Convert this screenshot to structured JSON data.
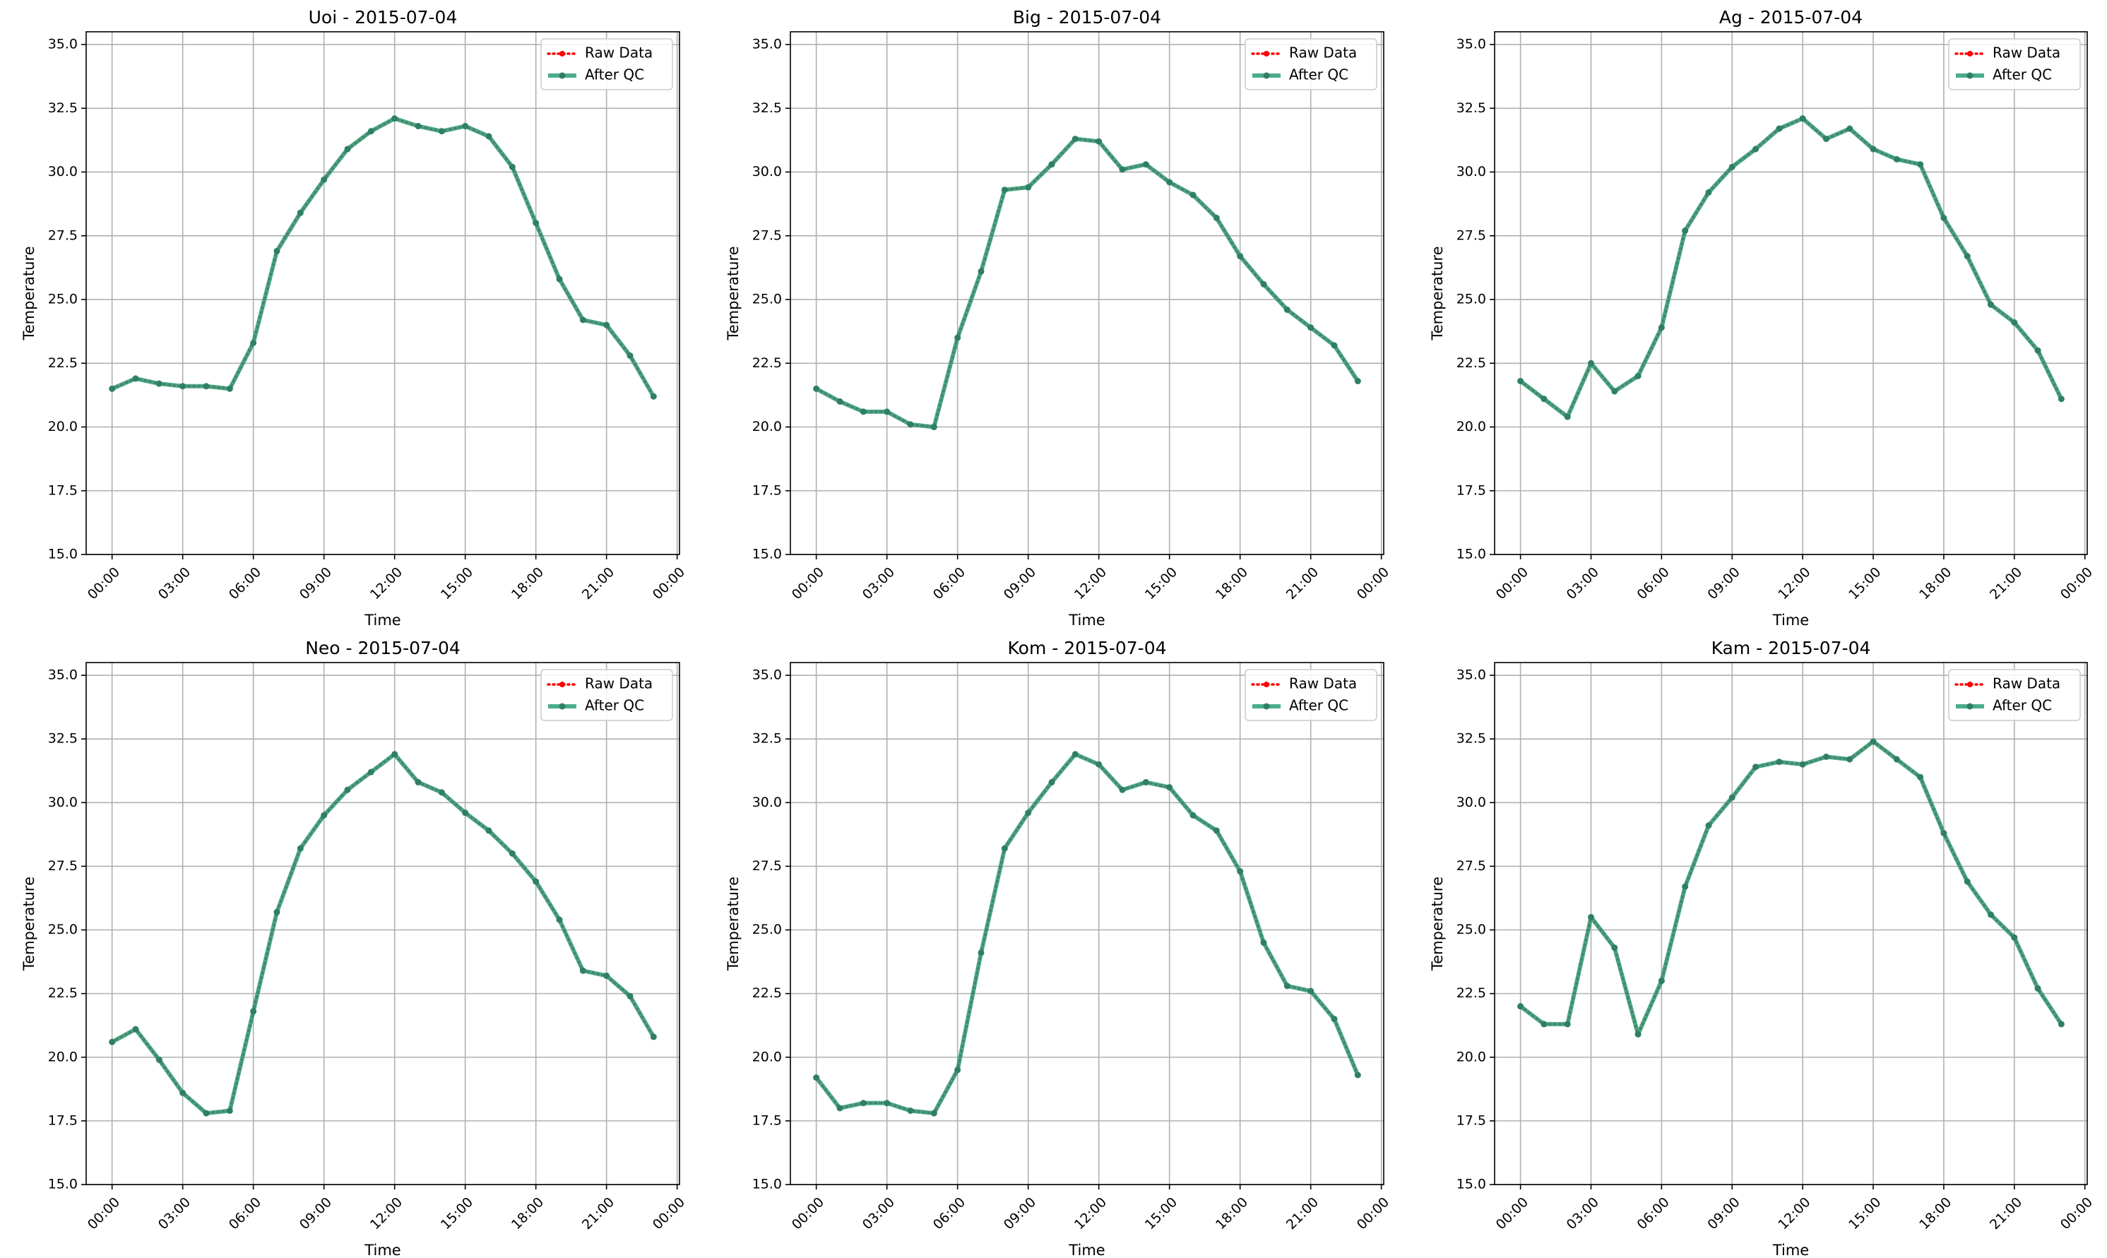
{
  "colors": {
    "raw": "#ff0000",
    "qc": "#2a9d78",
    "qc_marker": "#2f7f66",
    "grid": "#b0b0b0",
    "axis": "#000000"
  },
  "legend": {
    "raw_label": "Raw Data",
    "qc_label": "After QC",
    "placement": "top-right"
  },
  "chart_data": [
    {
      "type": "line",
      "title": "Uoi - 2015-07-04",
      "xlabel": "Time",
      "ylabel": "Temperature",
      "xlim": [
        -1.1,
        24.1
      ],
      "ylim": [
        15.0,
        35.5
      ],
      "xticks": [
        0,
        3,
        6,
        9,
        12,
        15,
        18,
        21,
        24
      ],
      "xtick_labels": [
        "00:00",
        "03:00",
        "06:00",
        "09:00",
        "12:00",
        "15:00",
        "18:00",
        "21:00",
        "00:00"
      ],
      "yticks": [
        15.0,
        17.5,
        20.0,
        22.5,
        25.0,
        27.5,
        30.0,
        32.5,
        35.0
      ],
      "ytick_labels": [
        "15.0",
        "17.5",
        "20.0",
        "22.5",
        "25.0",
        "27.5",
        "30.0",
        "32.5",
        "35.0"
      ],
      "grid": true,
      "series": [
        {
          "name": "Raw Data",
          "values": [
            21.5,
            21.9,
            21.7,
            21.6,
            21.6,
            21.5,
            23.3,
            26.9,
            28.4,
            29.7,
            30.9,
            31.6,
            32.1,
            31.8,
            31.6,
            31.8,
            31.4,
            30.2,
            28.0,
            25.8,
            24.2,
            24.0,
            22.8,
            21.2
          ]
        },
        {
          "name": "After QC",
          "values": [
            21.5,
            21.9,
            21.7,
            21.6,
            21.6,
            21.5,
            23.3,
            26.9,
            28.4,
            29.7,
            30.9,
            31.6,
            32.1,
            31.8,
            31.6,
            31.8,
            31.4,
            30.2,
            28.0,
            25.8,
            24.2,
            24.0,
            22.8,
            21.2
          ]
        }
      ]
    },
    {
      "type": "line",
      "title": "Big - 2015-07-04",
      "xlabel": "Time",
      "ylabel": "Temperature",
      "xlim": [
        -1.1,
        24.1
      ],
      "ylim": [
        15.0,
        35.5
      ],
      "xticks": [
        0,
        3,
        6,
        9,
        12,
        15,
        18,
        21,
        24
      ],
      "xtick_labels": [
        "00:00",
        "03:00",
        "06:00",
        "09:00",
        "12:00",
        "15:00",
        "18:00",
        "21:00",
        "00:00"
      ],
      "yticks": [
        15.0,
        17.5,
        20.0,
        22.5,
        25.0,
        27.5,
        30.0,
        32.5,
        35.0
      ],
      "ytick_labels": [
        "15.0",
        "17.5",
        "20.0",
        "22.5",
        "25.0",
        "27.5",
        "30.0",
        "32.5",
        "35.0"
      ],
      "grid": true,
      "series": [
        {
          "name": "Raw Data",
          "values": [
            21.5,
            21.0,
            20.6,
            20.6,
            20.1,
            20.0,
            23.5,
            26.1,
            29.3,
            29.4,
            30.3,
            31.3,
            31.2,
            30.1,
            30.3,
            29.6,
            29.1,
            28.2,
            26.7,
            25.6,
            24.6,
            23.9,
            23.2,
            21.8
          ]
        },
        {
          "name": "After QC",
          "values": [
            21.5,
            21.0,
            20.6,
            20.6,
            20.1,
            20.0,
            23.5,
            26.1,
            29.3,
            29.4,
            30.3,
            31.3,
            31.2,
            30.1,
            30.3,
            29.6,
            29.1,
            28.2,
            26.7,
            25.6,
            24.6,
            23.9,
            23.2,
            21.8
          ]
        }
      ]
    },
    {
      "type": "line",
      "title": "Ag - 2015-07-04",
      "xlabel": "Time",
      "ylabel": "Temperature",
      "xlim": [
        -1.1,
        24.1
      ],
      "ylim": [
        15.0,
        35.5
      ],
      "xticks": [
        0,
        3,
        6,
        9,
        12,
        15,
        18,
        21,
        24
      ],
      "xtick_labels": [
        "00:00",
        "03:00",
        "06:00",
        "09:00",
        "12:00",
        "15:00",
        "18:00",
        "21:00",
        "00:00"
      ],
      "yticks": [
        15.0,
        17.5,
        20.0,
        22.5,
        25.0,
        27.5,
        30.0,
        32.5,
        35.0
      ],
      "ytick_labels": [
        "15.0",
        "17.5",
        "20.0",
        "22.5",
        "25.0",
        "27.5",
        "30.0",
        "32.5",
        "35.0"
      ],
      "grid": true,
      "series": [
        {
          "name": "Raw Data",
          "values": [
            21.8,
            21.1,
            20.4,
            22.5,
            21.4,
            22.0,
            23.9,
            27.7,
            29.2,
            30.2,
            30.9,
            31.7,
            32.1,
            31.3,
            31.7,
            30.9,
            30.5,
            30.3,
            28.2,
            26.7,
            24.8,
            24.1,
            23.0,
            21.1
          ]
        },
        {
          "name": "After QC",
          "values": [
            21.8,
            21.1,
            20.4,
            22.5,
            21.4,
            22.0,
            23.9,
            27.7,
            29.2,
            30.2,
            30.9,
            31.7,
            32.1,
            31.3,
            31.7,
            30.9,
            30.5,
            30.3,
            28.2,
            26.7,
            24.8,
            24.1,
            23.0,
            21.1
          ]
        }
      ]
    },
    {
      "type": "line",
      "title": "Neo - 2015-07-04",
      "xlabel": "Time",
      "ylabel": "Temperature",
      "xlim": [
        -1.1,
        24.1
      ],
      "ylim": [
        15.0,
        35.5
      ],
      "xticks": [
        0,
        3,
        6,
        9,
        12,
        15,
        18,
        21,
        24
      ],
      "xtick_labels": [
        "00:00",
        "03:00",
        "06:00",
        "09:00",
        "12:00",
        "15:00",
        "18:00",
        "21:00",
        "00:00"
      ],
      "yticks": [
        15.0,
        17.5,
        20.0,
        22.5,
        25.0,
        27.5,
        30.0,
        32.5,
        35.0
      ],
      "ytick_labels": [
        "15.0",
        "17.5",
        "20.0",
        "22.5",
        "25.0",
        "27.5",
        "30.0",
        "32.5",
        "35.0"
      ],
      "grid": true,
      "series": [
        {
          "name": "Raw Data",
          "values": [
            20.6,
            21.1,
            19.9,
            18.6,
            17.8,
            17.9,
            21.8,
            25.7,
            28.2,
            29.5,
            30.5,
            31.2,
            31.9,
            30.8,
            30.4,
            29.6,
            28.9,
            28.0,
            26.9,
            25.4,
            23.4,
            23.2,
            22.4,
            20.8
          ]
        },
        {
          "name": "After QC",
          "values": [
            20.6,
            21.1,
            19.9,
            18.6,
            17.8,
            17.9,
            21.8,
            25.7,
            28.2,
            29.5,
            30.5,
            31.2,
            31.9,
            30.8,
            30.4,
            29.6,
            28.9,
            28.0,
            26.9,
            25.4,
            23.4,
            23.2,
            22.4,
            20.8
          ]
        }
      ]
    },
    {
      "type": "line",
      "title": "Kom - 2015-07-04",
      "xlabel": "Time",
      "ylabel": "Temperature",
      "xlim": [
        -1.1,
        24.1
      ],
      "ylim": [
        15.0,
        35.5
      ],
      "xticks": [
        0,
        3,
        6,
        9,
        12,
        15,
        18,
        21,
        24
      ],
      "xtick_labels": [
        "00:00",
        "03:00",
        "06:00",
        "09:00",
        "12:00",
        "15:00",
        "18:00",
        "21:00",
        "00:00"
      ],
      "yticks": [
        15.0,
        17.5,
        20.0,
        22.5,
        25.0,
        27.5,
        30.0,
        32.5,
        35.0
      ],
      "ytick_labels": [
        "15.0",
        "17.5",
        "20.0",
        "22.5",
        "25.0",
        "27.5",
        "30.0",
        "32.5",
        "35.0"
      ],
      "grid": true,
      "series": [
        {
          "name": "Raw Data",
          "values": [
            19.2,
            18.0,
            18.2,
            18.2,
            17.9,
            17.8,
            19.5,
            24.1,
            28.2,
            29.6,
            30.8,
            31.9,
            31.5,
            30.5,
            30.8,
            30.6,
            29.5,
            28.9,
            27.3,
            24.5,
            22.8,
            22.6,
            21.5,
            19.3
          ]
        },
        {
          "name": "After QC",
          "values": [
            19.2,
            18.0,
            18.2,
            18.2,
            17.9,
            17.8,
            19.5,
            24.1,
            28.2,
            29.6,
            30.8,
            31.9,
            31.5,
            30.5,
            30.8,
            30.6,
            29.5,
            28.9,
            27.3,
            24.5,
            22.8,
            22.6,
            21.5,
            19.3
          ]
        }
      ]
    },
    {
      "type": "line",
      "title": "Kam - 2015-07-04",
      "xlabel": "Time",
      "ylabel": "Temperature",
      "xlim": [
        -1.1,
        24.1
      ],
      "ylim": [
        15.0,
        35.5
      ],
      "xticks": [
        0,
        3,
        6,
        9,
        12,
        15,
        18,
        21,
        24
      ],
      "xtick_labels": [
        "00:00",
        "03:00",
        "06:00",
        "09:00",
        "12:00",
        "15:00",
        "18:00",
        "21:00",
        "00:00"
      ],
      "yticks": [
        15.0,
        17.5,
        20.0,
        22.5,
        25.0,
        27.5,
        30.0,
        32.5,
        35.0
      ],
      "ytick_labels": [
        "15.0",
        "17.5",
        "20.0",
        "22.5",
        "25.0",
        "27.5",
        "30.0",
        "32.5",
        "35.0"
      ],
      "grid": true,
      "series": [
        {
          "name": "Raw Data",
          "values": [
            22.0,
            21.3,
            21.3,
            25.5,
            24.3,
            20.9,
            23.0,
            26.7,
            29.1,
            30.2,
            31.4,
            31.6,
            31.5,
            31.8,
            31.7,
            32.4,
            31.7,
            31.0,
            28.8,
            26.9,
            25.6,
            24.7,
            22.7,
            21.3
          ]
        },
        {
          "name": "After QC",
          "values": [
            22.0,
            21.3,
            21.3,
            25.5,
            24.3,
            20.9,
            23.0,
            26.7,
            29.1,
            30.2,
            31.4,
            31.6,
            31.5,
            31.8,
            31.7,
            32.4,
            31.7,
            31.0,
            28.8,
            26.9,
            25.6,
            24.7,
            22.7,
            21.3
          ]
        }
      ]
    }
  ]
}
